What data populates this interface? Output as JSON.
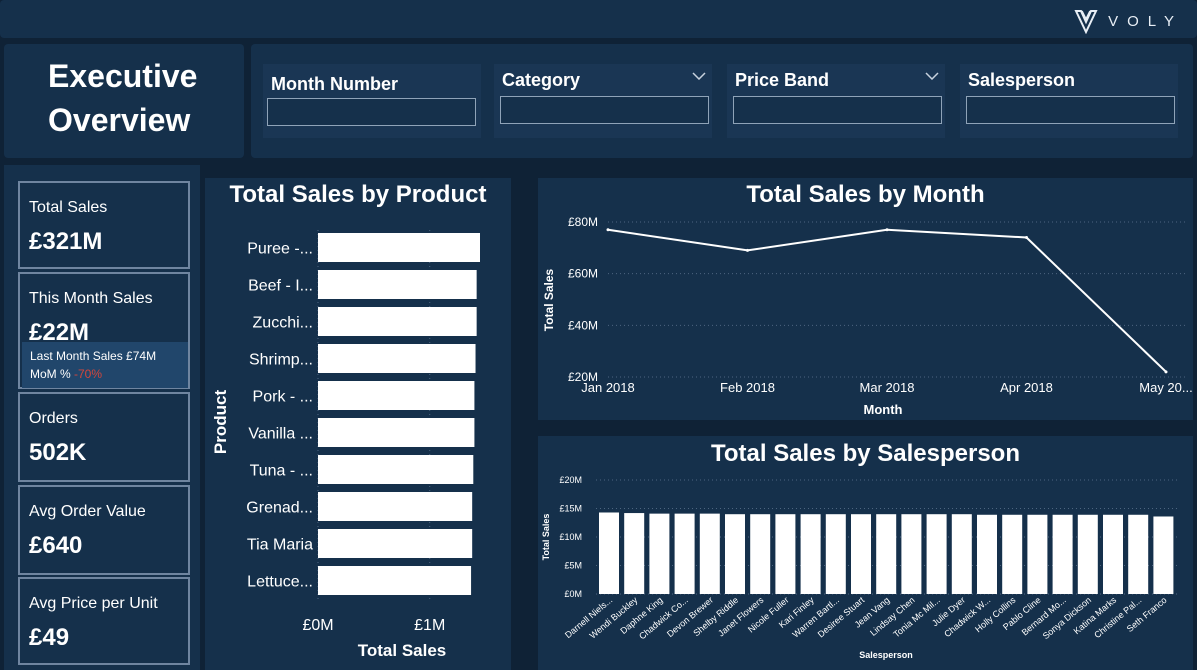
{
  "brand": {
    "name": "VOLY"
  },
  "title": {
    "line1": "Executive",
    "line2": "Overview"
  },
  "filters": [
    {
      "label": "Month Number",
      "value": "",
      "dropdown": false
    },
    {
      "label": "Category",
      "value": "",
      "dropdown": true
    },
    {
      "label": "Price Band",
      "value": "",
      "dropdown": true
    },
    {
      "label": "Salesperson",
      "value": "",
      "dropdown": false
    }
  ],
  "kpis": {
    "total_sales": {
      "label": "Total Sales",
      "value": "£321M"
    },
    "this_month": {
      "label": "This Month Sales",
      "value": "£22M",
      "last_month_text": "Last Month Sales £74M",
      "mom_label": "MoM %",
      "mom_value": "-70%"
    },
    "orders": {
      "label": "Orders",
      "value": "502K"
    },
    "avg_order": {
      "label": "Avg Order Value",
      "value": "£640"
    },
    "avg_price": {
      "label": "Avg Price per Unit",
      "value": "£49"
    }
  },
  "colors": {
    "bg": "#0f2236",
    "panel": "#15304b",
    "bar": "#ffffff",
    "negative": "#d4463c"
  },
  "chart_data": [
    {
      "type": "bar",
      "orientation": "horizontal",
      "title": "Total Sales by Product",
      "xlabel": "Total Sales",
      "ylabel": "Product",
      "categories": [
        "Puree -...",
        "Beef - I...",
        "Zucchi...",
        "Shrimp...",
        "Pork - ...",
        "Vanilla ...",
        "Tuna - ...",
        "Grenad...",
        "Tia Maria",
        "Lettuce..."
      ],
      "values": [
        1.45,
        1.42,
        1.42,
        1.41,
        1.4,
        1.4,
        1.39,
        1.38,
        1.38,
        1.37
      ],
      "xlim": [
        0,
        1.45
      ],
      "xticks": [
        {
          "value": 0,
          "label": "£0M"
        },
        {
          "value": 1,
          "label": "£1M"
        }
      ]
    },
    {
      "type": "line",
      "title": "Total Sales by Month",
      "xlabel": "Month",
      "ylabel": "Total Sales",
      "categories": [
        "Jan 2018",
        "Feb 2018",
        "Mar 2018",
        "Apr 2018",
        "May 20..."
      ],
      "values": [
        77,
        69,
        77,
        74,
        22
      ],
      "ylim": [
        20,
        80
      ],
      "yticks": [
        {
          "value": 20,
          "label": "£20M"
        },
        {
          "value": 40,
          "label": "£40M"
        },
        {
          "value": 60,
          "label": "£60M"
        },
        {
          "value": 80,
          "label": "£80M"
        }
      ],
      "grid": true
    },
    {
      "type": "bar",
      "orientation": "vertical",
      "title": "Total Sales by Salesperson",
      "xlabel": "Salesperson",
      "ylabel": "Total Sales",
      "categories": [
        "Darnell Niels...",
        "Wendi Buckley",
        "Daphne King",
        "Chadwick Co...",
        "Devon Brewer",
        "Shelby Riddle",
        "Janet Flowers",
        "Nicole Fuller",
        "Kari Finley",
        "Warren Bartl...",
        "Desiree Stuart",
        "Jean Vang",
        "Lindsay Chen",
        "Tonia Mc Mil...",
        "Julie Dyer",
        "Chadwick W...",
        "Holly Collins",
        "Pablo Cline",
        "Bernard Mo...",
        "Sonya Dickson",
        "Katina Marks",
        "Christine Pal...",
        "Seth Franco"
      ],
      "values": [
        14.3,
        14.2,
        14.1,
        14.1,
        14.1,
        14.0,
        14.0,
        14.0,
        14.0,
        14.0,
        14.0,
        14.0,
        14.0,
        14.0,
        14.0,
        13.9,
        13.9,
        13.9,
        13.9,
        13.9,
        13.9,
        13.9,
        13.6
      ],
      "ylim": [
        0,
        20
      ],
      "yticks": [
        {
          "value": 0,
          "label": "£0M"
        },
        {
          "value": 5,
          "label": "£5M"
        },
        {
          "value": 10,
          "label": "£10M"
        },
        {
          "value": 15,
          "label": "£15M"
        },
        {
          "value": 20,
          "label": "£20M"
        }
      ],
      "grid": true
    }
  ]
}
